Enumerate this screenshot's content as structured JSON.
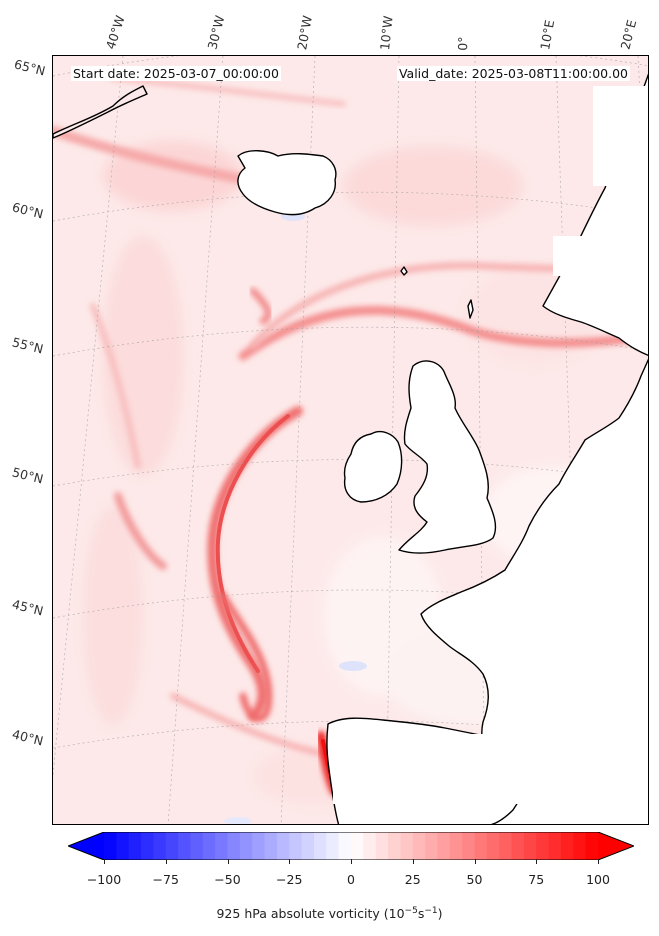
{
  "header": {
    "start_date": "Start date: 2025-03-07_00:00:00",
    "valid_date": "Valid_date: 2025-03-08T11:00:00.00"
  },
  "lon_labels": [
    "40°W",
    "30°W",
    "20°W",
    "10°W",
    "0°",
    "10°E",
    "20°E"
  ],
  "lat_labels": [
    "65°N",
    "60°N",
    "55°N",
    "50°N",
    "45°N",
    "40°N"
  ],
  "colorbar": {
    "min": -100,
    "max": 100,
    "step": 5,
    "colormap": "bwr",
    "low_color": "#0000ff",
    "mid_color": "#ffffff",
    "high_color": "#ff0000",
    "extend": "both",
    "ticks": [
      "−100",
      "−75",
      "−50",
      "−25",
      "0",
      "25",
      "50",
      "75",
      "100"
    ],
    "label_main": "925 hPa absolute vorticity (10",
    "label_exp1": "−5",
    "label_mid": "s",
    "label_exp2": "−1",
    "label_end": ")"
  },
  "map": {
    "projection": "lambert-conformal",
    "extent_lon": [
      -45,
      20
    ],
    "extent_lat": [
      37,
      66
    ],
    "coastline_color": "#000000",
    "gridline_style": "dotted"
  }
}
